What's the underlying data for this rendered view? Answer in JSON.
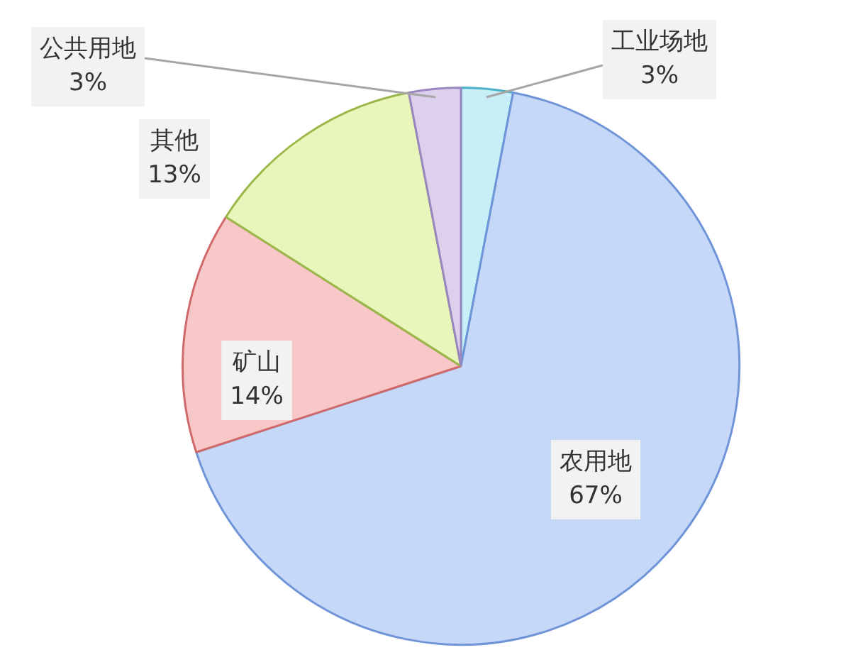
{
  "chart_data": {
    "type": "pie",
    "categories": [
      "工业场地",
      "农用地",
      "矿山",
      "其他",
      "公共用地"
    ],
    "values": [
      3,
      67,
      14,
      13,
      3
    ],
    "value_labels": [
      "3%",
      "67%",
      "14%",
      "13%",
      "3%"
    ],
    "colors": [
      "#c8eef8",
      "#c6d8f7",
      "#f8c8c8",
      "#e9f6bb",
      "#dcd0ec"
    ],
    "legend": false
  }
}
